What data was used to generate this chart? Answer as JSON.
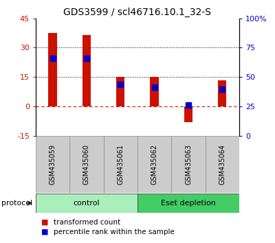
{
  "title": "GDS3599 / scl46716.10.1_32-S",
  "samples": [
    "GSM435059",
    "GSM435060",
    "GSM435061",
    "GSM435062",
    "GSM435063",
    "GSM435064"
  ],
  "transformed_count": [
    37.5,
    36.5,
    15.0,
    15.0,
    -8.0,
    13.5
  ],
  "percentile_rank": [
    66.0,
    66.0,
    44.0,
    41.5,
    26.5,
    40.0
  ],
  "groups": [
    {
      "label": "control",
      "indices": [
        0,
        1,
        2
      ],
      "color": "#AAEEBB"
    },
    {
      "label": "Eset depletion",
      "indices": [
        3,
        4,
        5
      ],
      "color": "#44CC66"
    }
  ],
  "left_ylim": [
    -15,
    45
  ],
  "right_ylim": [
    0,
    100
  ],
  "left_yticks": [
    -15,
    0,
    15,
    30,
    45
  ],
  "right_yticks": [
    0,
    25,
    50,
    75,
    100
  ],
  "right_yticklabels": [
    "0",
    "25",
    "50",
    "75",
    "100%"
  ],
  "bar_color": "#CC1100",
  "dot_color": "#0000CC",
  "bar_width": 0.25,
  "dot_size": 28,
  "protocol_label": "protocol",
  "legend_bar": "transformed count",
  "legend_dot": "percentile rank within the sample",
  "left_tick_color": "#CC1100",
  "right_tick_color": "#0000CC",
  "title_fontsize": 10,
  "tick_fontsize": 8,
  "label_fontsize": 8,
  "sample_fontsize": 7,
  "group_fontsize": 8
}
